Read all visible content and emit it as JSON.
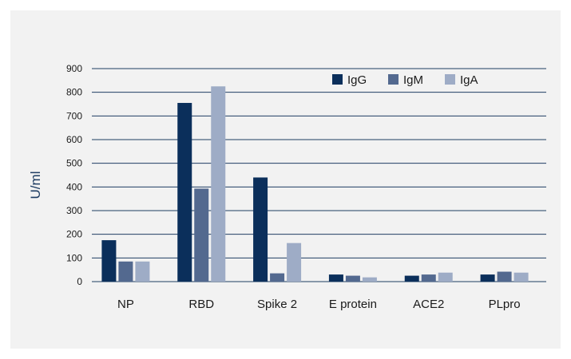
{
  "chart_data": {
    "type": "bar",
    "title": "",
    "xlabel": "",
    "ylabel": "U/ml",
    "ylim": [
      0,
      900
    ],
    "yticks": [
      0,
      100,
      200,
      300,
      400,
      500,
      600,
      700,
      800,
      900
    ],
    "grid": true,
    "legend_position": "top-right",
    "categories": [
      "NP",
      "RBD",
      "Spike 2",
      "E protein",
      "ACE2",
      "PLpro"
    ],
    "series": [
      {
        "name": "IgG",
        "color": "#0b2f5b",
        "values": [
          175,
          755,
          440,
          30,
          25,
          30
        ]
      },
      {
        "name": "IgM",
        "color": "#53698f",
        "values": [
          85,
          393,
          35,
          25,
          30,
          42
        ]
      },
      {
        "name": "IgA",
        "color": "#9eacc6",
        "values": [
          85,
          825,
          163,
          18,
          38,
          38
        ]
      }
    ]
  },
  "colors": {
    "panel_background": "#f2f2f2",
    "grid_line": "#1f3d63",
    "axis_title": "#1f3d63"
  }
}
